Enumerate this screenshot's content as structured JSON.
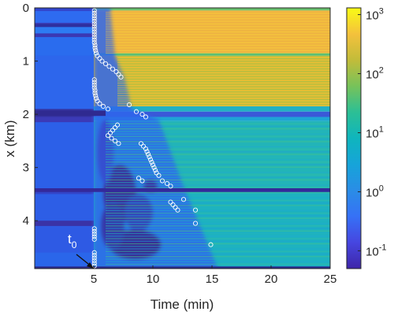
{
  "chart_data": {
    "type": "heatmap",
    "xlabel": "Time (min)",
    "ylabel": "x (km)",
    "xlim": [
      0,
      25
    ],
    "ylim": [
      0,
      4.9
    ],
    "y_reversed": true,
    "x_ticks": [
      5,
      10,
      15,
      20,
      25
    ],
    "y_ticks": [
      0,
      1,
      2,
      3,
      4
    ],
    "x_tick_labels": [
      "5",
      "10",
      "15",
      "20",
      "25"
    ],
    "y_tick_labels": [
      "0",
      "1",
      "2",
      "3",
      "4"
    ],
    "colorbar": {
      "scale": "log",
      "range": [
        0.05,
        1300
      ],
      "ticks": [
        0.1,
        1,
        10,
        100,
        1000
      ],
      "tick_labels": [
        {
          "base": "10",
          "exp": "-1"
        },
        {
          "base": "10",
          "exp": "0"
        },
        {
          "base": "10",
          "exp": "1"
        },
        {
          "base": "10",
          "exp": "2"
        },
        {
          "base": "10",
          "exp": "3"
        }
      ],
      "colormap": "parula"
    },
    "annotation": {
      "text": "t",
      "subscript": "0",
      "x": 5.0,
      "y": 4.9
    },
    "arrival_points": [
      {
        "t": 5.05,
        "x": 0.05
      },
      {
        "t": 5.05,
        "x": 0.1
      },
      {
        "t": 5.05,
        "x": 0.15
      },
      {
        "t": 5.05,
        "x": 0.2
      },
      {
        "t": 5.05,
        "x": 0.25
      },
      {
        "t": 5.05,
        "x": 0.3
      },
      {
        "t": 5.05,
        "x": 0.35
      },
      {
        "t": 5.05,
        "x": 0.4
      },
      {
        "t": 5.05,
        "x": 0.45
      },
      {
        "t": 5.05,
        "x": 0.5
      },
      {
        "t": 5.05,
        "x": 0.55
      },
      {
        "t": 5.05,
        "x": 0.6
      },
      {
        "t": 5.05,
        "x": 0.65
      },
      {
        "t": 5.1,
        "x": 0.7
      },
      {
        "t": 5.1,
        "x": 0.75
      },
      {
        "t": 5.15,
        "x": 0.8
      },
      {
        "t": 5.2,
        "x": 0.85
      },
      {
        "t": 5.3,
        "x": 0.9
      },
      {
        "t": 5.5,
        "x": 0.95
      },
      {
        "t": 5.7,
        "x": 1.0
      },
      {
        "t": 6.0,
        "x": 1.05
      },
      {
        "t": 6.3,
        "x": 1.1
      },
      {
        "t": 6.6,
        "x": 1.15
      },
      {
        "t": 6.9,
        "x": 1.2
      },
      {
        "t": 7.1,
        "x": 1.25
      },
      {
        "t": 7.3,
        "x": 1.3
      },
      {
        "t": 5.05,
        "x": 1.35
      },
      {
        "t": 5.05,
        "x": 1.4
      },
      {
        "t": 5.05,
        "x": 1.45
      },
      {
        "t": 5.05,
        "x": 1.5
      },
      {
        "t": 5.1,
        "x": 1.55
      },
      {
        "t": 5.1,
        "x": 1.6
      },
      {
        "t": 5.15,
        "x": 1.65
      },
      {
        "t": 5.2,
        "x": 1.7
      },
      {
        "t": 5.3,
        "x": 1.75
      },
      {
        "t": 5.5,
        "x": 1.8
      },
      {
        "t": 5.8,
        "x": 1.85
      },
      {
        "t": 6.2,
        "x": 1.9
      },
      {
        "t": 8.0,
        "x": 1.82
      },
      {
        "t": 8.6,
        "x": 1.95
      },
      {
        "t": 9.1,
        "x": 2.0
      },
      {
        "t": 9.4,
        "x": 2.05
      },
      {
        "t": 7.0,
        "x": 2.2
      },
      {
        "t": 6.8,
        "x": 2.25
      },
      {
        "t": 6.6,
        "x": 2.3
      },
      {
        "t": 6.4,
        "x": 2.35
      },
      {
        "t": 6.2,
        "x": 2.4
      },
      {
        "t": 6.5,
        "x": 2.45
      },
      {
        "t": 6.8,
        "x": 2.5
      },
      {
        "t": 7.1,
        "x": 2.55
      },
      {
        "t": 9.0,
        "x": 2.55
      },
      {
        "t": 9.2,
        "x": 2.6
      },
      {
        "t": 9.4,
        "x": 2.65
      },
      {
        "t": 9.5,
        "x": 2.7
      },
      {
        "t": 9.6,
        "x": 2.75
      },
      {
        "t": 9.7,
        "x": 2.8
      },
      {
        "t": 9.8,
        "x": 2.85
      },
      {
        "t": 9.9,
        "x": 2.9
      },
      {
        "t": 10.0,
        "x": 2.95
      },
      {
        "t": 10.1,
        "x": 3.0
      },
      {
        "t": 10.2,
        "x": 3.05
      },
      {
        "t": 10.3,
        "x": 3.1
      },
      {
        "t": 10.5,
        "x": 3.15
      },
      {
        "t": 10.8,
        "x": 3.25
      },
      {
        "t": 11.2,
        "x": 3.3
      },
      {
        "t": 11.5,
        "x": 3.35
      },
      {
        "t": 8.8,
        "x": 3.2
      },
      {
        "t": 9.1,
        "x": 3.25
      },
      {
        "t": 11.5,
        "x": 3.65
      },
      {
        "t": 11.7,
        "x": 3.7
      },
      {
        "t": 11.9,
        "x": 3.75
      },
      {
        "t": 12.1,
        "x": 3.8
      },
      {
        "t": 12.6,
        "x": 3.6
      },
      {
        "t": 13.6,
        "x": 3.8
      },
      {
        "t": 13.6,
        "x": 4.05
      },
      {
        "t": 14.9,
        "x": 4.45
      },
      {
        "t": 5.05,
        "x": 4.15
      },
      {
        "t": 5.05,
        "x": 4.2
      },
      {
        "t": 5.05,
        "x": 4.25
      },
      {
        "t": 5.05,
        "x": 4.3
      },
      {
        "t": 5.05,
        "x": 4.35
      },
      {
        "t": 5.05,
        "x": 4.6
      },
      {
        "t": 5.05,
        "x": 4.65
      },
      {
        "t": 5.05,
        "x": 4.7
      },
      {
        "t": 5.05,
        "x": 4.75
      },
      {
        "t": 5.05,
        "x": 4.8
      },
      {
        "t": 5.05,
        "x": 4.85
      }
    ]
  }
}
